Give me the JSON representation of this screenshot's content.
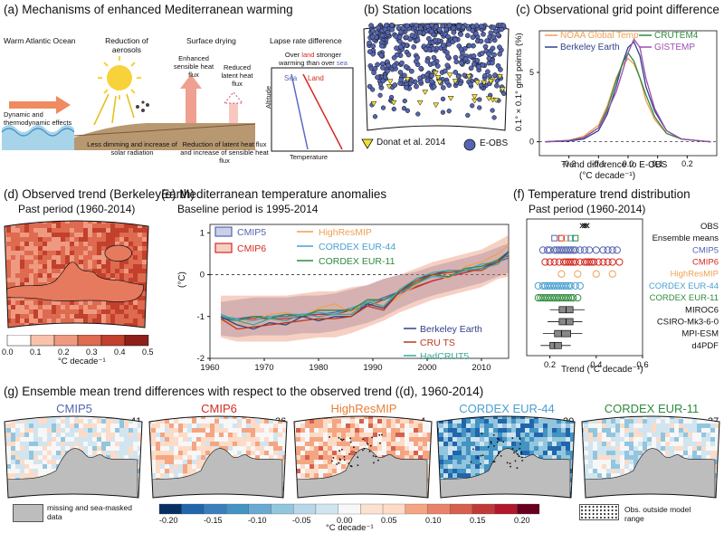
{
  "panel_a": {
    "title": "(a) Mechanisms of enhanced Mediterranean warming",
    "col1": "Warm Atlantic Ocean",
    "col2": "Reduction of aerosols",
    "col3": "Surface drying",
    "col4": "Lapse rate difference",
    "dyn": "Dynamic and thermodynamic effects",
    "less_dimming": "Less dimming and increase of solar radiation",
    "latent": "Reduction of latent heat flux and increase of sensible heat flux",
    "enh_sensible": "Enhanced sensible heat flux",
    "red_latent": "Reduced latent heat flux",
    "over_land_1": "Over",
    "over_land_2": "land",
    "over_land_3": "stronger",
    "over_land_4": "warming than over",
    "over_land_5": "sea",
    "sea": "Sea",
    "land": "Land",
    "altitude": "Altitude",
    "temperature": "Temperature"
  },
  "panel_b": {
    "title": "(b) Station locations",
    "legend1": "Donat et al. 2014",
    "legend2": "E-OBS"
  },
  "panel_c": {
    "title": "(c) Observational grid point difference",
    "ylabel": "0.1° × 0.1° grid points (%)",
    "xlabel1": "Trend difference to E-OBS",
    "xlabel2": "(°C decade⁻¹)"
  },
  "panel_d": {
    "title": "(d) Observed trend (BerkeleyEarth)",
    "subtitle": "Past period (1960-2014)",
    "cbar_ticks": [
      "0.0",
      "0.1",
      "0.2",
      "0.3",
      "0.4",
      "0.5"
    ],
    "cbar_label": "°C decade⁻¹"
  },
  "panel_e": {
    "title": "(e) Mediterranean temperature anomalies",
    "subtitle": "Baseline period is 1995-2014",
    "ylabel": "(°C)"
  },
  "panel_f": {
    "title": "(f) Temperature trend distribution",
    "subtitle": "Past period (1960-2014)",
    "xlabel": "Trend (°C decade⁻¹)",
    "rows": [
      "OBS",
      "Ensemble means",
      "CMIP5",
      "CMIP6",
      "HighResMIP",
      "CORDEX EUR-44",
      "CORDEX EUR-11",
      "MIROC6",
      "CSIRO-Mk3-6-0",
      "MPI-ESM",
      "d4PDF"
    ],
    "row_colors": [
      "#111111",
      "#111111",
      "#5565b0",
      "#d42a20",
      "#f0a050",
      "#4a9fd0",
      "#2e8a3e",
      "#111111",
      "#111111",
      "#111111",
      "#111111"
    ]
  },
  "panel_g": {
    "title": "(g) Ensemble mean trend differences with respect to the observed trend ((d), 1960-2014)",
    "maps": [
      {
        "name": "CMIP5",
        "count": "41",
        "color": "#5565b0"
      },
      {
        "name": "CMIP6",
        "count": "36",
        "color": "#d42a20"
      },
      {
        "name": "HighResMIP",
        "count": "4",
        "color": "#e8803a"
      },
      {
        "name": "CORDEX EUR-44",
        "count": "20",
        "color": "#4a9fd0"
      },
      {
        "name": "CORDEX EUR-11",
        "count": "37",
        "color": "#2e8a3e"
      }
    ],
    "missing": "missing and sea-masked data",
    "cbar_ticks": [
      "-0.20",
      "-0.15",
      "-0.10",
      "-0.05",
      "0.00",
      "0.05",
      "0.10",
      "0.15",
      "0.20"
    ],
    "cbar_label": "°C decade⁻¹",
    "obs_outside": "Obs. outside model range"
  },
  "chart_data": [
    {
      "type": "line",
      "title": "(c) Observational grid point difference",
      "xlabel": "Trend difference to E-OBS (°C decade⁻¹)",
      "ylabel": "0.1° × 0.1° grid points (%)",
      "xlim": [
        -0.3,
        0.3
      ],
      "ylim": [
        -1,
        8
      ],
      "xticks": [
        "-0.2",
        "-0.1",
        "0.0",
        "0.1",
        "0.2"
      ],
      "yticks": [
        "0",
        "5"
      ],
      "x": [
        -0.28,
        -0.2,
        -0.15,
        -0.1,
        -0.07,
        -0.04,
        -0.02,
        0.0,
        0.02,
        0.04,
        0.06,
        0.09,
        0.13,
        0.18,
        0.25,
        0.28
      ],
      "series": [
        {
          "name": "NOAA Global Temp",
          "color": "#f0a050",
          "values": [
            0,
            0.1,
            0.4,
            1.2,
            2.6,
            4.6,
            5.5,
            6.0,
            5.6,
            4.6,
            3.0,
            1.6,
            0.6,
            0.2,
            0.05,
            0
          ]
        },
        {
          "name": "Berkeley Earth",
          "color": "#33418a",
          "values": [
            0,
            0.05,
            0.2,
            0.8,
            2.0,
            4.0,
            5.6,
            6.8,
            7.2,
            6.2,
            4.0,
            2.2,
            0.8,
            0.2,
            0.05,
            0
          ]
        },
        {
          "name": "CRUTEM4",
          "color": "#2e8a3e",
          "values": [
            0,
            0.1,
            0.3,
            1.0,
            2.4,
            4.4,
            5.6,
            6.4,
            5.8,
            4.6,
            3.4,
            1.8,
            0.6,
            0.2,
            0.05,
            0
          ]
        },
        {
          "name": "GISTEMP",
          "color": "#9b4fb0",
          "values": [
            0,
            0.1,
            0.3,
            1.0,
            2.2,
            3.6,
            5.0,
            6.4,
            7.4,
            6.8,
            4.6,
            2.4,
            0.8,
            0.2,
            0.05,
            0
          ]
        }
      ]
    },
    {
      "type": "line",
      "title": "(e) Mediterranean temperature anomalies",
      "xlim": [
        1960,
        2015
      ],
      "ylim": [
        -2,
        1.2
      ],
      "xticks": [
        "1960",
        "1970",
        "1980",
        "1990",
        "2000",
        "2010"
      ],
      "yticks": [
        "-2",
        "-1",
        "0",
        "1"
      ],
      "x": [
        1962,
        1965,
        1968,
        1971,
        1974,
        1977,
        1980,
        1983,
        1986,
        1989,
        1992,
        1995,
        1998,
        2001,
        2004,
        2007,
        2010,
        2013,
        2015
      ],
      "series": [
        {
          "name": "CMIP5",
          "color": "#5565b0",
          "values": [
            -1.05,
            -1.05,
            -1.0,
            -1.0,
            -1.0,
            -0.95,
            -0.95,
            -0.9,
            -0.8,
            -0.7,
            -0.55,
            -0.4,
            -0.28,
            -0.15,
            -0.05,
            0.05,
            0.15,
            0.3,
            0.4
          ],
          "band": [
            0.4,
            0.45,
            0.45,
            0.45,
            0.45,
            0.45,
            0.45,
            0.45,
            0.45,
            0.45,
            0.45,
            0.4,
            0.35,
            0.35,
            0.35,
            0.35,
            0.35,
            0.35,
            0.35
          ]
        },
        {
          "name": "CMIP6",
          "color": "#d42a20",
          "values": [
            -1.0,
            -1.05,
            -1.05,
            -1.05,
            -1.05,
            -1.0,
            -0.95,
            -0.95,
            -0.85,
            -0.75,
            -0.6,
            -0.45,
            -0.3,
            -0.15,
            -0.05,
            0.05,
            0.15,
            0.35,
            0.45
          ],
          "band": [
            0.5,
            0.55,
            0.55,
            0.55,
            0.55,
            0.55,
            0.55,
            0.55,
            0.55,
            0.5,
            0.5,
            0.45,
            0.45,
            0.45,
            0.45,
            0.45,
            0.45,
            0.45,
            0.5
          ]
        },
        {
          "name": "HighResMIP",
          "color": "#f0a050",
          "values": [
            -1.1,
            -1.2,
            -1.1,
            -0.95,
            -0.9,
            -1.0,
            -0.8,
            -0.7,
            -0.9,
            -0.6,
            -0.8,
            -0.5,
            -0.25,
            0.0,
            -0.1,
            0.2,
            0.3,
            0.5,
            0.7
          ]
        },
        {
          "name": "CORDEX EUR-44",
          "color": "#4a9fd0",
          "values": [
            -1.0,
            -1.05,
            -1.1,
            -1.0,
            -0.95,
            -0.95,
            -0.9,
            -0.95,
            -0.8,
            -0.65,
            -0.6,
            -0.45,
            -0.2,
            -0.05,
            -0.05,
            0.1,
            0.25,
            0.3,
            0.5
          ]
        },
        {
          "name": "CORDEX EUR-11",
          "color": "#2e8a3e",
          "values": [
            -1.05,
            -1.1,
            -1.0,
            -1.05,
            -0.95,
            -1.0,
            -0.85,
            -0.85,
            -0.85,
            -0.6,
            -0.6,
            -0.4,
            -0.2,
            0.0,
            -0.05,
            0.15,
            0.2,
            0.35,
            0.55
          ]
        },
        {
          "name": "Berkeley Earth",
          "color": "#33418a",
          "values": [
            -1.0,
            -1.2,
            -1.3,
            -1.15,
            -1.2,
            -1.0,
            -1.1,
            -1.0,
            -1.0,
            -0.7,
            -0.8,
            -0.4,
            -0.1,
            0.0,
            0.1,
            0.1,
            0.15,
            0.3,
            0.55
          ]
        },
        {
          "name": "CRU TS",
          "color": "#b83a20",
          "values": [
            -1.05,
            -1.3,
            -1.25,
            -1.2,
            -1.15,
            -1.1,
            -1.05,
            -1.05,
            -1.0,
            -0.75,
            -0.85,
            -0.4,
            -0.15,
            0.0,
            0.05,
            0.1,
            0.1,
            0.3,
            0.5
          ]
        },
        {
          "name": "HadCRUT5",
          "color": "#3aa89a",
          "values": [
            -0.95,
            -1.1,
            -1.2,
            -1.05,
            -1.1,
            -0.95,
            -1.0,
            -0.95,
            -0.95,
            -0.65,
            -0.75,
            -0.35,
            -0.1,
            0.05,
            0.1,
            0.1,
            0.15,
            0.25,
            0.5
          ]
        }
      ]
    },
    {
      "type": "scatter",
      "title": "(f) Temperature trend distribution",
      "xlim": [
        0.1,
        0.6
      ],
      "xticks": [
        "0.2",
        "0.4",
        "0.6"
      ],
      "rows": [
        {
          "name": "OBS",
          "values": [
            0.34,
            0.35,
            0.36,
            0.35,
            0.36
          ]
        },
        {
          "name": "Ensemble means",
          "values": [
            0.22,
            0.25,
            0.27,
            0.29,
            0.31
          ]
        },
        {
          "name": "CMIP5",
          "values": [
            0.17,
            0.19,
            0.2,
            0.22,
            0.23,
            0.24,
            0.25,
            0.26,
            0.27,
            0.28,
            0.29,
            0.3,
            0.31,
            0.33,
            0.35,
            0.37,
            0.4,
            0.43,
            0.45,
            0.47,
            0.49
          ]
        },
        {
          "name": "CMIP6",
          "values": [
            0.18,
            0.2,
            0.22,
            0.24,
            0.26,
            0.27,
            0.28,
            0.29,
            0.3,
            0.31,
            0.33,
            0.35,
            0.36,
            0.37,
            0.38,
            0.39,
            0.41,
            0.43,
            0.45,
            0.47,
            0.5
          ]
        },
        {
          "name": "HighResMIP",
          "values": [
            0.25,
            0.32,
            0.4,
            0.47
          ]
        },
        {
          "name": "CORDEX EUR-44",
          "values": [
            0.15,
            0.17,
            0.18,
            0.19,
            0.2,
            0.21,
            0.22,
            0.23,
            0.24,
            0.25,
            0.26,
            0.27,
            0.28,
            0.29,
            0.31,
            0.33
          ]
        },
        {
          "name": "CORDEX EUR-11",
          "values": [
            0.15,
            0.16,
            0.17,
            0.18,
            0.19,
            0.2,
            0.21,
            0.22,
            0.23,
            0.24,
            0.25,
            0.26,
            0.27,
            0.28,
            0.29,
            0.3,
            0.32
          ]
        },
        {
          "name": "MIROC6",
          "box": [
            0.2,
            0.24,
            0.27,
            0.3,
            0.35
          ]
        },
        {
          "name": "CSIRO-Mk3-6-0",
          "box": [
            0.19,
            0.24,
            0.27,
            0.3,
            0.34
          ]
        },
        {
          "name": "MPI-ESM",
          "box": [
            0.17,
            0.22,
            0.25,
            0.29,
            0.34
          ]
        },
        {
          "name": "d4PDF",
          "box": [
            0.16,
            0.2,
            0.22,
            0.25,
            0.29
          ]
        }
      ]
    }
  ]
}
